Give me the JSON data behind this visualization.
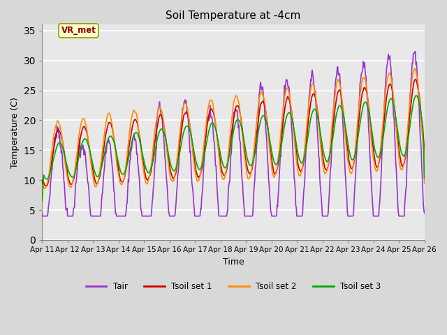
{
  "title": "Soil Temperature at -4cm",
  "xlabel": "Time",
  "ylabel": "Temperature (C)",
  "ylim": [
    0,
    36
  ],
  "yticks": [
    0,
    5,
    10,
    15,
    20,
    25,
    30,
    35
  ],
  "fig_bg_color": "#d8d8d8",
  "plot_bg_color": "#e8e8e8",
  "grid_color": "white",
  "annotation_text": "VR_met",
  "annotation_bg": "#ffffcc",
  "annotation_edge": "#999900",
  "line_colors": {
    "Tair": "#9932CC",
    "Tsoil set 1": "#CC0000",
    "Tsoil set 2": "#FF8C00",
    "Tsoil set 3": "#00AA00"
  },
  "xtick_labels": [
    "Apr 11",
    "Apr 12",
    "Apr 13",
    "Apr 14",
    "Apr 15",
    "Apr 16",
    "Apr 17",
    "Apr 18",
    "Apr 19",
    "Apr 20",
    "Apr 21",
    "Apr 22",
    "Apr 23",
    "Apr 24",
    "Apr 25",
    "Apr 26"
  ],
  "xtick_days": [
    0,
    1,
    2,
    3,
    4,
    5,
    6,
    7,
    8,
    9,
    10,
    11,
    12,
    13,
    14,
    15
  ]
}
